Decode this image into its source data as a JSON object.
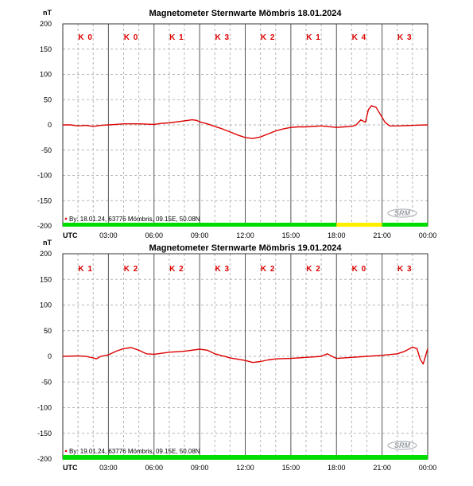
{
  "chart_data": [
    {
      "type": "line",
      "title": "Magnetometer Sternwarte Mömbris 18.01.2024",
      "ylabel": "nT",
      "xlabel": "UTC",
      "ylim": [
        -200,
        200
      ],
      "y_ticks": [
        "200",
        "150",
        "100",
        "50",
        "0",
        "-50",
        "-100",
        "-150",
        "-200"
      ],
      "x_ticks": [
        "03:00",
        "06:00",
        "09:00",
        "12:00",
        "15:00",
        "18:00",
        "21:00",
        "00:00"
      ],
      "xlim_hours": [
        0,
        24
      ],
      "k_index": [
        "K 0",
        "K 0",
        "K 1",
        "K 3",
        "K 2",
        "K 1",
        "K 4",
        "K 3"
      ],
      "activity_bar": [
        "#00dd00",
        "#00dd00",
        "#00dd00",
        "#00dd00",
        "#00dd00",
        "#00dd00",
        "#ffee00",
        "#00dd00"
      ],
      "footer": "By: 18.01.24, 63776 Mömbris, 09.15E, 50.08N",
      "logo": "SRM",
      "series": [
        {
          "color": "#dd0000",
          "x": [
            0,
            0.5,
            1,
            1.5,
            2,
            2.5,
            3,
            3.5,
            4,
            5,
            6,
            6.5,
            7,
            7.5,
            8,
            8.5,
            8.8,
            9,
            9.5,
            10,
            10.5,
            11,
            11.5,
            12,
            12.5,
            13,
            13.5,
            14,
            14.5,
            15,
            15.5,
            16,
            17,
            18,
            18.5,
            19,
            19.3,
            19.6,
            19.9,
            20.1,
            20.3,
            20.6,
            20.9,
            21.2,
            21.5,
            22,
            23,
            24
          ],
          "y": [
            0,
            0,
            -2,
            -1,
            -3,
            -1,
            0,
            1,
            2,
            2,
            1,
            3,
            4,
            6,
            8,
            10,
            9,
            6,
            2,
            -3,
            -8,
            -14,
            -20,
            -25,
            -27,
            -24,
            -18,
            -12,
            -8,
            -5,
            -4,
            -4,
            -2,
            -5,
            -4,
            -3,
            0,
            10,
            5,
            30,
            38,
            35,
            20,
            5,
            -2,
            -2,
            -1,
            0
          ]
        }
      ]
    },
    {
      "type": "line",
      "title": "Magnetometer Sternwarte Mömbris 19.01.2024",
      "ylabel": "nT",
      "xlabel": "UTC",
      "ylim": [
        -200,
        200
      ],
      "y_ticks": [
        "200",
        "150",
        "100",
        "50",
        "0",
        "-50",
        "-100",
        "-150",
        "-200"
      ],
      "x_ticks": [
        "03:00",
        "06:00",
        "09:00",
        "12:00",
        "15:00",
        "18:00",
        "21:00",
        "00:00"
      ],
      "xlim_hours": [
        0,
        24
      ],
      "k_index": [
        "K 1",
        "K 2",
        "K 2",
        "K 3",
        "K 2",
        "K 2",
        "K 0",
        "K 3"
      ],
      "activity_bar": [
        "#00dd00",
        "#00dd00",
        "#00dd00",
        "#00dd00",
        "#00dd00",
        "#00dd00",
        "#00dd00",
        "#00dd00"
      ],
      "footer": "By: 19.01.24, 63776 Mömbris, 09.15E, 50.08N",
      "logo": "SRM",
      "series": [
        {
          "color": "#dd0000",
          "x": [
            0,
            1,
            1.5,
            2,
            2.2,
            2.5,
            3,
            3.5,
            4,
            4.5,
            5,
            5.5,
            6,
            7,
            8,
            9,
            9.5,
            10,
            11,
            12,
            12.5,
            13,
            13.5,
            14,
            15,
            16,
            17,
            17.4,
            17.7,
            18,
            19,
            20,
            21,
            22,
            22.5,
            23,
            23.3,
            23.5,
            23.7,
            24
          ],
          "y": [
            0,
            1,
            0,
            -3,
            -5,
            0,
            3,
            10,
            15,
            17,
            12,
            5,
            4,
            8,
            10,
            14,
            12,
            5,
            -3,
            -8,
            -12,
            -10,
            -7,
            -5,
            -4,
            -2,
            0,
            5,
            0,
            -4,
            -2,
            0,
            2,
            5,
            10,
            18,
            15,
            -5,
            -15,
            15
          ]
        }
      ]
    }
  ]
}
